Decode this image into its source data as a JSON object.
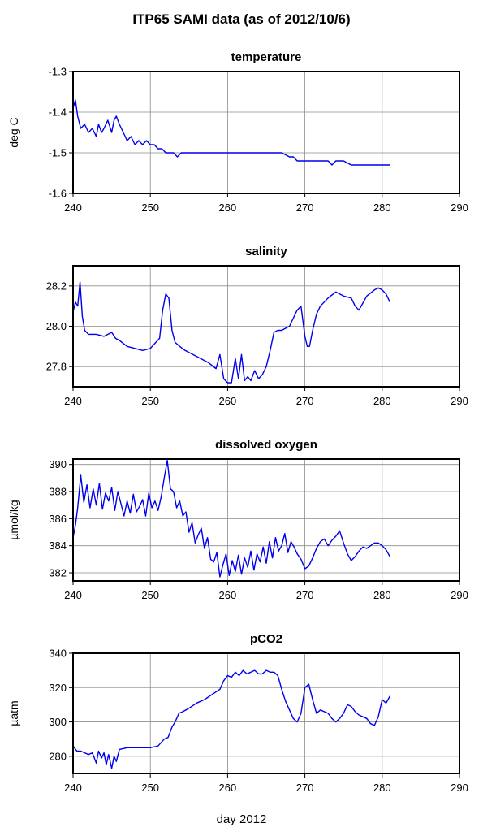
{
  "title": "ITP65 SAMI data (as of 2012/10/6)",
  "xlabel": "day 2012",
  "chart_data": [
    {
      "type": "line",
      "title": "temperature",
      "ylabel": "deg C",
      "xlim": [
        240,
        290
      ],
      "ylim": [
        -1.6,
        -1.3
      ],
      "xticks": [
        240,
        250,
        260,
        270,
        280,
        290
      ],
      "yticks": [
        -1.6,
        -1.5,
        -1.4,
        -1.3
      ],
      "ytick_labels": [
        "-1.6",
        "-1.5",
        "-1.4",
        "-1.3"
      ],
      "grid": true,
      "color": "#0000ee",
      "series": [
        {
          "x": [
            240,
            240.3,
            240.6,
            241,
            241.5,
            242,
            242.5,
            243,
            243.3,
            243.7,
            244,
            244.5,
            245,
            245.3,
            245.6,
            246,
            246.5,
            247,
            247.5,
            248,
            248.5,
            249,
            249.5,
            250,
            250.5,
            251,
            251.5,
            252,
            252.5,
            253,
            253.5,
            254,
            255,
            256,
            257,
            258,
            259,
            260,
            261,
            262,
            263,
            264,
            265,
            266,
            267,
            268,
            268.5,
            269,
            270,
            271,
            272,
            273,
            273.5,
            274,
            275,
            276,
            277,
            278,
            279,
            280,
            281
          ],
          "y": [
            -1.39,
            -1.37,
            -1.41,
            -1.44,
            -1.43,
            -1.45,
            -1.44,
            -1.46,
            -1.43,
            -1.45,
            -1.44,
            -1.42,
            -1.45,
            -1.42,
            -1.41,
            -1.43,
            -1.45,
            -1.47,
            -1.46,
            -1.48,
            -1.47,
            -1.48,
            -1.47,
            -1.48,
            -1.48,
            -1.49,
            -1.49,
            -1.5,
            -1.5,
            -1.5,
            -1.51,
            -1.5,
            -1.5,
            -1.5,
            -1.5,
            -1.5,
            -1.5,
            -1.5,
            -1.5,
            -1.5,
            -1.5,
            -1.5,
            -1.5,
            -1.5,
            -1.5,
            -1.51,
            -1.51,
            -1.52,
            -1.52,
            -1.52,
            -1.52,
            -1.52,
            -1.53,
            -1.52,
            -1.52,
            -1.53,
            -1.53,
            -1.53,
            -1.53,
            -1.53,
            -1.53
          ]
        }
      ]
    },
    {
      "type": "line",
      "title": "salinity",
      "ylabel": "",
      "xlim": [
        240,
        290
      ],
      "ylim": [
        27.7,
        28.3
      ],
      "xticks": [
        240,
        250,
        260,
        270,
        280,
        290
      ],
      "yticks": [
        27.8,
        28.0,
        28.2
      ],
      "ytick_labels": [
        "27.8",
        "28.0",
        "28.2"
      ],
      "grid": true,
      "color": "#0000ee",
      "series": [
        {
          "x": [
            240,
            240.3,
            240.6,
            240.9,
            241.2,
            241.5,
            242,
            243,
            244,
            245,
            245.5,
            246,
            247,
            248,
            249,
            250,
            250.7,
            251.2,
            251.6,
            252,
            252.4,
            252.8,
            253.2,
            253.8,
            254.5,
            255.5,
            256.5,
            257.5,
            258.5,
            259,
            259.5,
            260,
            260.5,
            261,
            261.4,
            261.8,
            262.2,
            262.6,
            263,
            263.5,
            264,
            264.5,
            265,
            265.5,
            266,
            266.5,
            267,
            268,
            269,
            269.5,
            270,
            270.3,
            270.6,
            271,
            271.5,
            272,
            273,
            274,
            275,
            276,
            276.5,
            277,
            278,
            279,
            279.5,
            280,
            280.5,
            281
          ],
          "y": [
            28.07,
            28.12,
            28.1,
            28.22,
            28.05,
            27.98,
            27.96,
            27.96,
            27.95,
            27.97,
            27.94,
            27.93,
            27.9,
            27.89,
            27.88,
            27.89,
            27.92,
            27.94,
            28.08,
            28.16,
            28.14,
            27.98,
            27.92,
            27.9,
            27.88,
            27.86,
            27.84,
            27.82,
            27.79,
            27.86,
            27.74,
            27.72,
            27.72,
            27.84,
            27.74,
            27.86,
            27.73,
            27.75,
            27.73,
            27.78,
            27.74,
            27.76,
            27.8,
            27.88,
            27.97,
            27.98,
            27.98,
            28.0,
            28.08,
            28.1,
            27.95,
            27.9,
            27.9,
            27.98,
            28.06,
            28.1,
            28.14,
            28.17,
            28.15,
            28.14,
            28.1,
            28.08,
            28.15,
            28.18,
            28.19,
            28.18,
            28.16,
            28.12
          ]
        }
      ]
    },
    {
      "type": "line",
      "title": "dissolved oxygen",
      "ylabel": "µmol/kg",
      "xlim": [
        240,
        290
      ],
      "ylim": [
        381.4,
        390.4
      ],
      "xticks": [
        240,
        250,
        260,
        270,
        280,
        290
      ],
      "yticks": [
        382,
        384,
        386,
        388,
        390
      ],
      "ytick_labels": [
        "382",
        "384",
        "386",
        "388",
        "390"
      ],
      "grid": true,
      "color": "#0000ee",
      "series": [
        {
          "x": [
            240,
            240.3,
            240.6,
            241,
            241.4,
            241.8,
            242.2,
            242.6,
            243,
            243.4,
            243.8,
            244.2,
            244.6,
            245,
            245.4,
            245.8,
            246.2,
            246.6,
            247,
            247.4,
            247.8,
            248.2,
            248.6,
            249,
            249.4,
            249.8,
            250.2,
            250.6,
            251,
            251.4,
            251.8,
            252.2,
            252.6,
            253,
            253.4,
            253.8,
            254.2,
            254.6,
            255,
            255.4,
            255.8,
            256.2,
            256.6,
            257,
            257.4,
            257.8,
            258.2,
            258.6,
            259,
            259.4,
            259.8,
            260.2,
            260.6,
            261,
            261.4,
            261.8,
            262.2,
            262.6,
            263,
            263.4,
            263.8,
            264.2,
            264.6,
            265,
            265.4,
            265.8,
            266.2,
            266.6,
            267,
            267.4,
            267.8,
            268.2,
            268.6,
            269,
            269.5,
            270,
            270.5,
            271,
            271.5,
            272,
            272.5,
            273,
            273.5,
            274,
            274.5,
            275,
            275.5,
            276,
            276.5,
            277,
            277.5,
            278,
            278.5,
            279,
            279.5,
            280,
            280.5,
            281
          ],
          "y": [
            384.6,
            385.5,
            386.8,
            389.2,
            387.2,
            388.5,
            386.8,
            388.2,
            387.0,
            388.6,
            386.7,
            387.9,
            387.3,
            388.3,
            386.6,
            388.0,
            387.1,
            386.2,
            387.3,
            386.4,
            387.8,
            386.5,
            386.9,
            387.4,
            386.2,
            387.9,
            386.8,
            387.3,
            386.6,
            387.6,
            389.0,
            390.3,
            388.2,
            388.0,
            386.8,
            387.3,
            386.2,
            386.5,
            385.0,
            385.7,
            384.2,
            384.8,
            385.3,
            383.8,
            384.6,
            383.0,
            382.8,
            383.5,
            381.7,
            382.6,
            383.4,
            381.8,
            382.9,
            382.1,
            383.3,
            381.9,
            383.1,
            382.4,
            383.6,
            382.2,
            383.4,
            382.8,
            383.9,
            382.7,
            384.3,
            383.1,
            384.6,
            383.6,
            384.0,
            384.9,
            383.5,
            384.3,
            383.9,
            383.4,
            383.0,
            382.3,
            382.5,
            383.1,
            383.8,
            384.3,
            384.5,
            384.0,
            384.4,
            384.7,
            385.1,
            384.2,
            383.4,
            382.9,
            383.2,
            383.6,
            383.9,
            383.8,
            384.0,
            384.2,
            384.2,
            384.0,
            383.7,
            383.2
          ]
        }
      ]
    },
    {
      "type": "line",
      "title": "pCO2",
      "ylabel": "µatm",
      "xlim": [
        240,
        290
      ],
      "ylim": [
        270,
        340
      ],
      "xticks": [
        240,
        250,
        260,
        270,
        280,
        290
      ],
      "yticks": [
        280,
        300,
        320,
        340
      ],
      "ytick_labels": [
        "280",
        "300",
        "320",
        "340"
      ],
      "grid": true,
      "color": "#0000ee",
      "series": [
        {
          "x": [
            240,
            240.5,
            241,
            241.5,
            242,
            242.5,
            243,
            243.3,
            243.7,
            244,
            244.3,
            244.6,
            245,
            245.3,
            245.6,
            246,
            247,
            248,
            249,
            250,
            251,
            251.8,
            252.3,
            252.8,
            253.2,
            253.7,
            254.2,
            255,
            256,
            257,
            258,
            259,
            259.5,
            260,
            260.5,
            261,
            261.5,
            262,
            262.5,
            263,
            263.5,
            264,
            264.5,
            265,
            265.5,
            266,
            266.5,
            267,
            267.5,
            268,
            268.5,
            269,
            269.5,
            270,
            270.5,
            271,
            271.5,
            272,
            272.5,
            273,
            273.5,
            274,
            274.5,
            275,
            275.5,
            276,
            276.5,
            277,
            277.5,
            278,
            278.5,
            279,
            279.5,
            280,
            280.5,
            281
          ],
          "y": [
            286,
            283,
            283,
            282,
            281,
            282,
            276,
            283,
            279,
            282,
            275,
            281,
            273,
            280,
            277,
            284,
            285,
            285,
            285,
            285,
            286,
            290,
            291,
            297,
            300,
            305,
            306,
            308,
            311,
            313,
            316,
            319,
            324,
            327,
            326,
            329,
            327,
            330,
            328,
            329,
            330,
            328,
            328,
            330,
            329,
            329,
            327,
            319,
            312,
            307,
            302,
            300,
            305,
            320,
            322,
            313,
            305,
            307,
            306,
            305,
            302,
            300,
            302,
            305,
            310,
            309,
            306,
            304,
            303,
            302,
            299,
            298,
            303,
            313,
            311,
            315
          ]
        }
      ]
    }
  ]
}
